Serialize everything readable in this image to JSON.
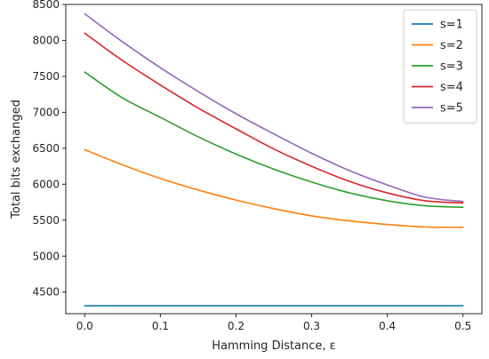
{
  "chart_data": {
    "type": "line",
    "title": "",
    "xlabel": "Hamming Distance, ε",
    "ylabel": "Total bits exchanged",
    "xlim": [
      -0.025,
      0.525
    ],
    "ylim": [
      4200,
      8500
    ],
    "x": [
      0.0,
      0.05,
      0.1,
      0.15,
      0.2,
      0.25,
      0.3,
      0.35,
      0.4,
      0.45,
      0.5
    ],
    "xticks": [
      0.0,
      0.1,
      0.2,
      0.3,
      0.4,
      0.5
    ],
    "xtick_labels": [
      "0.0",
      "0.1",
      "0.2",
      "0.3",
      "0.4",
      "0.5"
    ],
    "yticks": [
      4500,
      5000,
      5500,
      6000,
      6500,
      7000,
      7500,
      8000,
      8500
    ],
    "ytick_labels": [
      "4500",
      "5000",
      "5500",
      "6000",
      "6500",
      "7000",
      "7500",
      "8000",
      "8500"
    ],
    "grid": false,
    "legend_position": "top-right",
    "series": [
      {
        "name": "s=1",
        "color": "#1f77b4",
        "values": [
          4310,
          4310,
          4310,
          4310,
          4310,
          4310,
          4310,
          4310,
          4310,
          4310,
          4310
        ]
      },
      {
        "name": "s=2",
        "color": "#ff7f0e",
        "values": [
          6480,
          6270,
          6080,
          5920,
          5780,
          5660,
          5560,
          5490,
          5440,
          5405,
          5400
        ]
      },
      {
        "name": "s=3",
        "color": "#2ca02c",
        "values": [
          7560,
          7200,
          6930,
          6660,
          6420,
          6210,
          6030,
          5880,
          5770,
          5700,
          5680
        ]
      },
      {
        "name": "s=4",
        "color": "#d62728",
        "values": [
          8100,
          7720,
          7380,
          7060,
          6770,
          6490,
          6250,
          6040,
          5880,
          5770,
          5740
        ]
      },
      {
        "name": "s=5",
        "color": "#9467bd",
        "values": [
          8370,
          7980,
          7620,
          7290,
          6980,
          6700,
          6430,
          6190,
          5990,
          5820,
          5760
        ]
      }
    ]
  }
}
